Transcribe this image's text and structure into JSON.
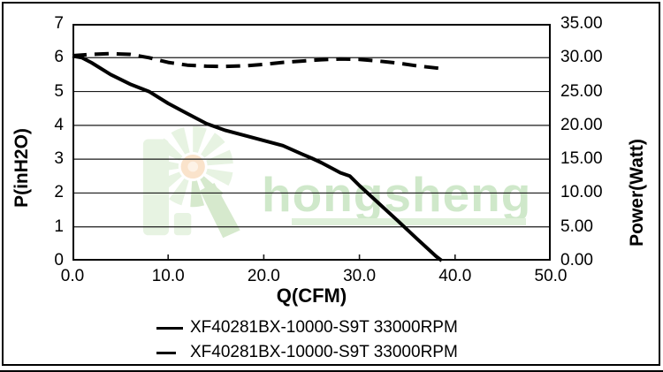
{
  "watermark": {
    "text": "hongsheng",
    "logo": "hongsheng-fan-pinwheel-logo",
    "text_color": "#cfe8ca",
    "logo_green_light": "#e7f3e2",
    "logo_green_mid": "#d6e9cd",
    "logo_center_peach": "#fae3cb"
  },
  "legend": {
    "items": [
      {
        "label": "XF40281BX-10000-S9T 33000RPM",
        "line_style": "solid"
      },
      {
        "label": "XF40281BX-10000-S9T 33000RPM",
        "line_style": "dashed"
      }
    ]
  },
  "chart_data": {
    "type": "line",
    "title": "",
    "xlabel": "Q(CFM)",
    "ylabel_left": "P(inH2O)",
    "ylabel_right": "Power(Watt)",
    "xlim": [
      0,
      50
    ],
    "ylim_left": [
      0,
      7
    ],
    "ylim_right": [
      0,
      35
    ],
    "grid": "horizontal",
    "legend_position": "bottom",
    "x_ticks": [
      "0.0",
      "10.0",
      "20.0",
      "30.0",
      "40.0",
      "50.0"
    ],
    "y_left_ticks": [
      "7",
      "6",
      "5",
      "4",
      "3",
      "2",
      "1",
      "0"
    ],
    "y_right_ticks": [
      "35.00",
      "30.00",
      "25.00",
      "20.00",
      "15.00",
      "10.00",
      "5.00",
      "0.00"
    ],
    "series": [
      {
        "name": "XF40281BX-10000-S9T 33000RPM",
        "line_style": "solid",
        "axis": "left",
        "unit": "inH2O",
        "x": [
          0,
          1,
          2,
          4,
          6,
          8,
          10,
          12,
          14,
          16,
          18,
          20,
          22,
          24,
          25,
          26,
          28,
          29,
          30,
          32,
          34,
          36,
          38,
          38.6
        ],
        "y": [
          6.05,
          6.0,
          5.85,
          5.5,
          5.22,
          5.0,
          4.65,
          4.35,
          4.05,
          3.85,
          3.7,
          3.55,
          3.4,
          3.15,
          3.03,
          2.9,
          2.6,
          2.5,
          2.22,
          1.7,
          1.18,
          0.65,
          0.13,
          0
        ]
      },
      {
        "name": "XF40281BX-10000-S9T 33000RPM",
        "line_style": "dashed",
        "axis": "right",
        "unit": "Watt",
        "x": [
          0,
          2,
          4,
          6,
          8,
          10,
          12,
          14,
          16,
          18,
          20,
          22,
          24,
          26,
          28,
          30,
          32,
          34,
          36,
          38.5
        ],
        "y": [
          30.3,
          30.5,
          30.6,
          30.5,
          30.0,
          29.3,
          28.9,
          28.75,
          28.7,
          28.8,
          29.0,
          29.3,
          29.5,
          29.7,
          29.8,
          29.75,
          29.5,
          29.2,
          28.8,
          28.4
        ]
      }
    ]
  }
}
